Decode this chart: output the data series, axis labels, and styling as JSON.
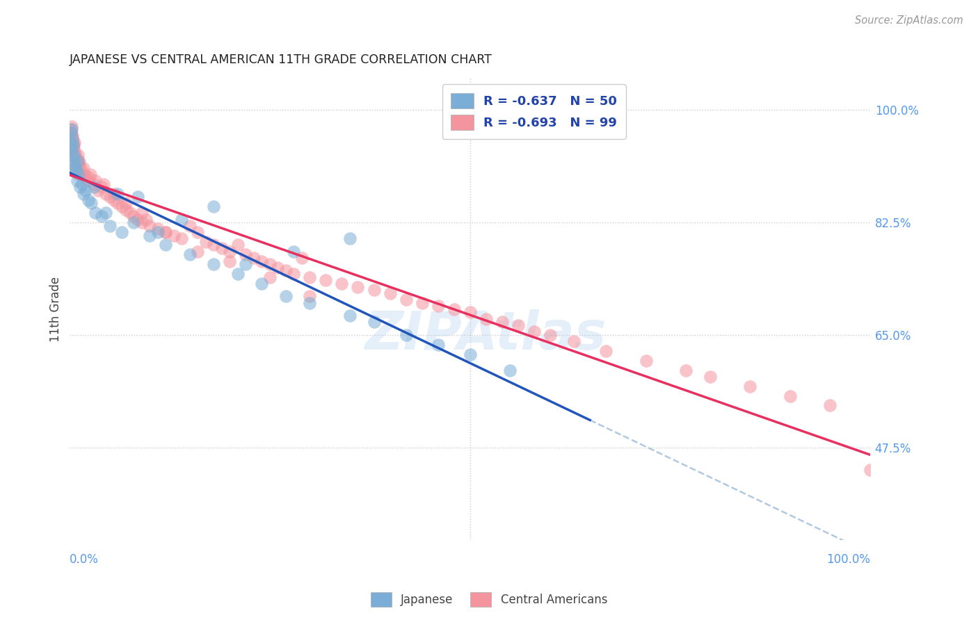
{
  "title": "JAPANESE VS CENTRAL AMERICAN 11TH GRADE CORRELATION CHART",
  "source": "Source: ZipAtlas.com",
  "ylabel": "11th Grade",
  "watermark": "ZIPAtlas",
  "blue_color": "#7aaed6",
  "pink_color": "#f4949e",
  "blue_line_color": "#2255bb",
  "pink_line_color": "#e83060",
  "dashed_line_color": "#b0c8e0",
  "title_color": "#222222",
  "source_color": "#999999",
  "axis_label_color": "#5599EE",
  "tick_label_color": "#5599EE",
  "background_color": "#FFFFFF",
  "grid_color": "#cccccc",
  "y_ticks": [
    47.5,
    65.0,
    82.5,
    100.0
  ],
  "xlim": [
    0,
    100
  ],
  "ylim": [
    33,
    105
  ],
  "japanese_x": [
    0.1,
    0.15,
    0.2,
    0.25,
    0.3,
    0.35,
    0.4,
    0.45,
    0.5,
    0.6,
    0.7,
    0.8,
    0.9,
    1.0,
    1.1,
    1.3,
    1.5,
    1.7,
    2.0,
    2.3,
    2.7,
    3.2,
    4.0,
    5.0,
    6.5,
    8.0,
    10.0,
    12.0,
    15.0,
    18.0,
    21.0,
    24.0,
    27.0,
    30.0,
    35.0,
    38.0,
    42.0,
    46.0,
    50.0,
    55.0,
    35.0,
    28.0,
    22.0,
    18.0,
    14.0,
    11.0,
    8.5,
    6.0,
    4.5,
    3.0
  ],
  "japanese_y": [
    96.5,
    95.0,
    97.0,
    94.0,
    95.5,
    93.0,
    94.5,
    92.0,
    93.0,
    91.5,
    91.0,
    90.5,
    89.0,
    92.0,
    90.0,
    88.0,
    88.5,
    87.0,
    87.5,
    86.0,
    85.5,
    84.0,
    83.5,
    82.0,
    81.0,
    82.5,
    80.5,
    79.0,
    77.5,
    76.0,
    74.5,
    73.0,
    71.0,
    70.0,
    68.0,
    67.0,
    65.0,
    63.5,
    62.0,
    59.5,
    80.0,
    78.0,
    76.0,
    85.0,
    83.0,
    81.0,
    86.5,
    87.0,
    84.0,
    88.0
  ],
  "central_x": [
    0.1,
    0.15,
    0.2,
    0.25,
    0.3,
    0.35,
    0.4,
    0.45,
    0.5,
    0.55,
    0.6,
    0.7,
    0.8,
    0.9,
    1.0,
    1.1,
    1.2,
    1.3,
    1.5,
    1.7,
    2.0,
    2.3,
    2.6,
    3.0,
    3.5,
    4.0,
    4.5,
    5.0,
    5.5,
    6.0,
    6.5,
    7.0,
    7.5,
    8.0,
    8.5,
    9.0,
    9.5,
    10.0,
    11.0,
    12.0,
    13.0,
    14.0,
    15.0,
    16.0,
    17.0,
    18.0,
    19.0,
    20.0,
    21.0,
    22.0,
    23.0,
    24.0,
    25.0,
    26.0,
    27.0,
    28.0,
    29.0,
    30.0,
    32.0,
    34.0,
    36.0,
    38.0,
    40.0,
    42.0,
    44.0,
    46.0,
    48.0,
    50.0,
    52.0,
    54.0,
    56.0,
    58.0,
    60.0,
    63.0,
    67.0,
    72.0,
    77.0,
    80.0,
    85.0,
    90.0,
    95.0,
    100.0,
    30.0,
    25.0,
    20.0,
    16.0,
    12.0,
    9.0,
    7.0,
    5.5,
    4.2,
    3.2,
    2.4,
    1.8,
    1.4,
    1.0,
    0.75,
    0.55
  ],
  "central_y": [
    97.0,
    96.5,
    97.5,
    96.0,
    95.5,
    96.0,
    95.0,
    94.5,
    94.0,
    95.0,
    93.5,
    93.0,
    92.5,
    92.0,
    93.0,
    91.5,
    92.0,
    90.5,
    90.0,
    91.0,
    89.5,
    89.0,
    90.0,
    88.5,
    87.5,
    88.0,
    87.0,
    86.5,
    86.0,
    85.5,
    85.0,
    84.5,
    84.0,
    83.5,
    83.0,
    82.5,
    83.0,
    82.0,
    81.5,
    81.0,
    80.5,
    80.0,
    82.0,
    81.0,
    79.5,
    79.0,
    78.5,
    78.0,
    79.0,
    77.5,
    77.0,
    76.5,
    76.0,
    75.5,
    75.0,
    74.5,
    77.0,
    74.0,
    73.5,
    73.0,
    72.5,
    72.0,
    71.5,
    70.5,
    70.0,
    69.5,
    69.0,
    68.5,
    67.5,
    67.0,
    66.5,
    65.5,
    65.0,
    64.0,
    62.5,
    61.0,
    59.5,
    58.5,
    57.0,
    55.5,
    54.0,
    44.0,
    71.0,
    74.0,
    76.5,
    78.0,
    81.0,
    84.0,
    85.5,
    87.0,
    88.5,
    89.0,
    89.5,
    90.0,
    91.0,
    92.0,
    90.5,
    91.5
  ]
}
